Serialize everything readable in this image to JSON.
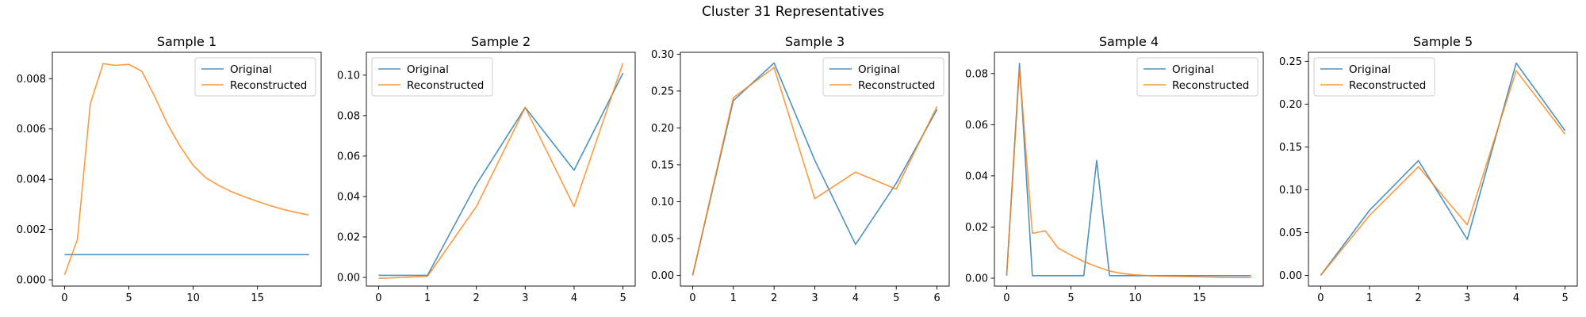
{
  "figure": {
    "title": "Cluster 31 Representatives"
  },
  "colors": {
    "original": "#1f77b4",
    "reconstructed": "#ff7f0e"
  },
  "chart_data": [
    {
      "type": "line",
      "title": "Sample 1",
      "xlabel": "",
      "ylabel": "",
      "xlim": [
        -0.95,
        19.95
      ],
      "ylim": [
        -0.00025,
        0.00905
      ],
      "xticks": [
        0,
        5,
        10,
        15
      ],
      "yticks": [
        0.0,
        0.002,
        0.004,
        0.006,
        0.008
      ],
      "ytick_labels": [
        "0.000",
        "0.002",
        "0.004",
        "0.006",
        "0.008"
      ],
      "grid": false,
      "legend": "upper right",
      "x": [
        0,
        1,
        2,
        3,
        4,
        5,
        6,
        7,
        8,
        9,
        10,
        11,
        12,
        13,
        14,
        15,
        16,
        17,
        18,
        19
      ],
      "series": [
        {
          "name": "Original",
          "values": [
            0.001,
            0.001,
            0.001,
            0.001,
            0.001,
            0.001,
            0.001,
            0.001,
            0.001,
            0.001,
            0.001,
            0.001,
            0.001,
            0.001,
            0.001,
            0.001,
            0.001,
            0.001,
            0.001,
            0.001
          ]
        },
        {
          "name": "Reconstructed",
          "values": [
            0.0002,
            0.0016,
            0.007,
            0.0086,
            0.00853,
            0.00857,
            0.0083,
            0.0073,
            0.0062,
            0.0053,
            0.00455,
            0.00405,
            0.00375,
            0.0035,
            0.0033,
            0.00312,
            0.00295,
            0.0028,
            0.00268,
            0.00258
          ]
        }
      ]
    },
    {
      "type": "line",
      "title": "Sample 2",
      "xlabel": "",
      "ylabel": "",
      "xlim": [
        -0.25,
        5.25
      ],
      "ylim": [
        -0.0043,
        0.1113
      ],
      "xticks": [
        0,
        1,
        2,
        3,
        4,
        5
      ],
      "yticks": [
        0.0,
        0.02,
        0.04,
        0.06,
        0.08,
        0.1
      ],
      "ytick_labels": [
        "0.00",
        "0.02",
        "0.04",
        "0.06",
        "0.08",
        "0.10"
      ],
      "grid": false,
      "legend": "upper left",
      "x": [
        0,
        1,
        2,
        3,
        4,
        5
      ],
      "series": [
        {
          "name": "Original",
          "values": [
            0.001,
            0.001,
            0.046,
            0.084,
            0.053,
            0.101
          ]
        },
        {
          "name": "Reconstructed",
          "values": [
            -0.0005,
            0.0005,
            0.035,
            0.084,
            0.035,
            0.106
          ]
        }
      ]
    },
    {
      "type": "line",
      "title": "Sample 3",
      "xlabel": "",
      "ylabel": "",
      "xlim": [
        -0.3,
        6.3
      ],
      "ylim": [
        -0.0145,
        0.3025
      ],
      "xticks": [
        0,
        1,
        2,
        3,
        4,
        5,
        6
      ],
      "yticks": [
        0.0,
        0.05,
        0.1,
        0.15,
        0.2,
        0.25,
        0.3
      ],
      "ytick_labels": [
        "0.00",
        "0.05",
        "0.10",
        "0.15",
        "0.20",
        "0.25",
        "0.30"
      ],
      "grid": false,
      "legend": "upper right",
      "x": [
        0,
        1,
        2,
        3,
        4,
        5,
        6
      ],
      "series": [
        {
          "name": "Original",
          "values": [
            0.0,
            0.237,
            0.288,
            0.156,
            0.042,
            0.125,
            0.225
          ]
        },
        {
          "name": "Reconstructed",
          "values": [
            0.0,
            0.241,
            0.282,
            0.104,
            0.14,
            0.117,
            0.229
          ]
        }
      ]
    },
    {
      "type": "line",
      "title": "Sample 4",
      "xlabel": "",
      "ylabel": "",
      "xlim": [
        -0.95,
        19.95
      ],
      "ylim": [
        -0.0031,
        0.0883
      ],
      "xticks": [
        0,
        5,
        10,
        15
      ],
      "yticks": [
        0.0,
        0.02,
        0.04,
        0.06,
        0.08
      ],
      "ytick_labels": [
        "0.00",
        "0.02",
        "0.04",
        "0.06",
        "0.08"
      ],
      "grid": false,
      "legend": "upper right",
      "x": [
        0,
        1,
        2,
        3,
        4,
        5,
        6,
        7,
        8,
        9,
        10,
        11,
        12,
        13,
        14,
        15,
        16,
        17,
        18,
        19
      ],
      "series": [
        {
          "name": "Original",
          "values": [
            0.001,
            0.084,
            0.001,
            0.001,
            0.001,
            0.001,
            0.001,
            0.046,
            0.001,
            0.001,
            0.001,
            0.001,
            0.001,
            0.001,
            0.001,
            0.001,
            0.001,
            0.001,
            0.001,
            0.001
          ]
        },
        {
          "name": "Reconstructed",
          "values": [
            0.001,
            0.082,
            0.0175,
            0.0185,
            0.0118,
            0.009,
            0.0065,
            0.0045,
            0.0028,
            0.0018,
            0.0013,
            0.001,
            0.0008,
            0.0007,
            0.0006,
            0.0005,
            0.0004,
            0.0003,
            0.0003,
            0.0002
          ]
        }
      ]
    },
    {
      "type": "line",
      "title": "Sample 5",
      "xlabel": "",
      "ylabel": "",
      "xlim": [
        -0.25,
        5.25
      ],
      "ylim": [
        -0.0125,
        0.2605
      ],
      "xticks": [
        0,
        1,
        2,
        3,
        4,
        5
      ],
      "yticks": [
        0.0,
        0.05,
        0.1,
        0.15,
        0.2,
        0.25
      ],
      "ytick_labels": [
        "0.00",
        "0.05",
        "0.10",
        "0.15",
        "0.20",
        "0.25"
      ],
      "grid": false,
      "legend": "upper left",
      "x": [
        0,
        1,
        2,
        3,
        4,
        5
      ],
      "series": [
        {
          "name": "Original",
          "values": [
            0.0,
            0.076,
            0.134,
            0.042,
            0.248,
            0.169
          ]
        },
        {
          "name": "Reconstructed",
          "values": [
            0.0,
            0.07,
            0.127,
            0.059,
            0.239,
            0.165
          ]
        }
      ]
    }
  ]
}
